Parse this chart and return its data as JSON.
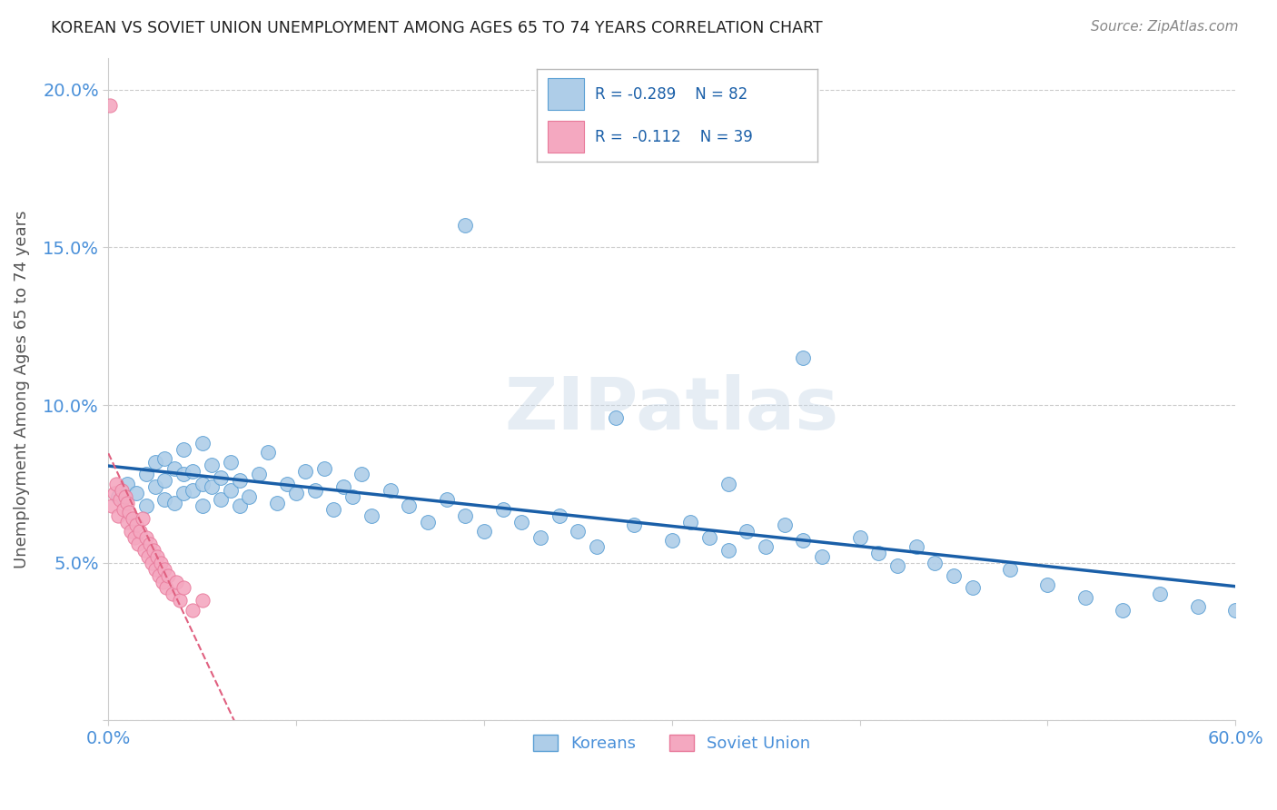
{
  "title": "KOREAN VS SOVIET UNION UNEMPLOYMENT AMONG AGES 65 TO 74 YEARS CORRELATION CHART",
  "source": "Source: ZipAtlas.com",
  "ylabel": "Unemployment Among Ages 65 to 74 years",
  "xlim": [
    0.0,
    0.6
  ],
  "ylim": [
    0.0,
    0.21
  ],
  "xticks": [
    0.0,
    0.1,
    0.2,
    0.3,
    0.4,
    0.5,
    0.6
  ],
  "xticklabels": [
    "0.0%",
    "",
    "",
    "",
    "",
    "",
    "60.0%"
  ],
  "yticks": [
    0.0,
    0.05,
    0.1,
    0.15,
    0.2
  ],
  "yticklabels": [
    "",
    "5.0%",
    "10.0%",
    "15.0%",
    "20.0%"
  ],
  "korean_color": "#aecde8",
  "soviet_color": "#f4a8c0",
  "korean_edge": "#5a9fd4",
  "soviet_edge": "#e8799a",
  "trend_korean_color": "#1a5fa8",
  "trend_soviet_color": "#e06080",
  "R_korean": -0.289,
  "N_korean": 82,
  "R_soviet": -0.112,
  "N_soviet": 39,
  "background_color": "#ffffff",
  "grid_color": "#cccccc",
  "tick_color": "#4a90d9",
  "korean_x": [
    0.005,
    0.01,
    0.015,
    0.02,
    0.02,
    0.025,
    0.025,
    0.03,
    0.03,
    0.03,
    0.035,
    0.035,
    0.04,
    0.04,
    0.04,
    0.045,
    0.045,
    0.05,
    0.05,
    0.05,
    0.055,
    0.055,
    0.06,
    0.06,
    0.065,
    0.065,
    0.07,
    0.07,
    0.075,
    0.08,
    0.085,
    0.09,
    0.095,
    0.1,
    0.105,
    0.11,
    0.115,
    0.12,
    0.125,
    0.13,
    0.135,
    0.14,
    0.15,
    0.16,
    0.17,
    0.18,
    0.19,
    0.2,
    0.21,
    0.22,
    0.23,
    0.24,
    0.25,
    0.26,
    0.28,
    0.3,
    0.31,
    0.32,
    0.33,
    0.34,
    0.35,
    0.36,
    0.37,
    0.38,
    0.4,
    0.41,
    0.42,
    0.43,
    0.44,
    0.45,
    0.46,
    0.48,
    0.5,
    0.52,
    0.54,
    0.56,
    0.58,
    0.6,
    0.27,
    0.33,
    0.19,
    0.37
  ],
  "korean_y": [
    0.071,
    0.075,
    0.072,
    0.068,
    0.078,
    0.074,
    0.082,
    0.07,
    0.076,
    0.083,
    0.069,
    0.08,
    0.072,
    0.078,
    0.086,
    0.073,
    0.079,
    0.068,
    0.075,
    0.088,
    0.074,
    0.081,
    0.07,
    0.077,
    0.073,
    0.082,
    0.068,
    0.076,
    0.071,
    0.078,
    0.085,
    0.069,
    0.075,
    0.072,
    0.079,
    0.073,
    0.08,
    0.067,
    0.074,
    0.071,
    0.078,
    0.065,
    0.073,
    0.068,
    0.063,
    0.07,
    0.065,
    0.06,
    0.067,
    0.063,
    0.058,
    0.065,
    0.06,
    0.055,
    0.062,
    0.057,
    0.063,
    0.058,
    0.054,
    0.06,
    0.055,
    0.062,
    0.057,
    0.052,
    0.058,
    0.053,
    0.049,
    0.055,
    0.05,
    0.046,
    0.042,
    0.048,
    0.043,
    0.039,
    0.035,
    0.04,
    0.036,
    0.035,
    0.096,
    0.075,
    0.157,
    0.115
  ],
  "soviet_x": [
    0.002,
    0.003,
    0.004,
    0.005,
    0.006,
    0.007,
    0.008,
    0.009,
    0.01,
    0.01,
    0.011,
    0.012,
    0.013,
    0.014,
    0.015,
    0.016,
    0.017,
    0.018,
    0.019,
    0.02,
    0.021,
    0.022,
    0.023,
    0.024,
    0.025,
    0.026,
    0.027,
    0.028,
    0.029,
    0.03,
    0.031,
    0.032,
    0.034,
    0.036,
    0.038,
    0.04,
    0.045,
    0.05,
    0.001
  ],
  "soviet_y": [
    0.068,
    0.072,
    0.075,
    0.065,
    0.07,
    0.073,
    0.067,
    0.071,
    0.063,
    0.069,
    0.066,
    0.06,
    0.064,
    0.058,
    0.062,
    0.056,
    0.06,
    0.064,
    0.054,
    0.058,
    0.052,
    0.056,
    0.05,
    0.054,
    0.048,
    0.052,
    0.046,
    0.05,
    0.044,
    0.048,
    0.042,
    0.046,
    0.04,
    0.044,
    0.038,
    0.042,
    0.035,
    0.038,
    0.195
  ]
}
